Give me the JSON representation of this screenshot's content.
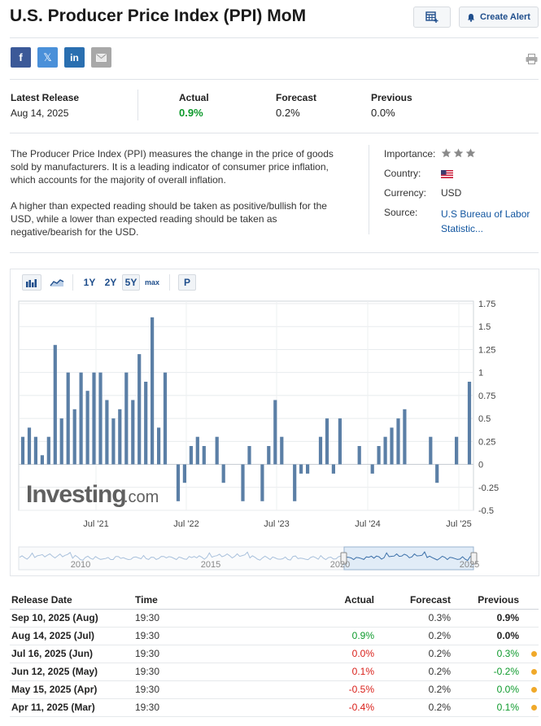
{
  "header": {
    "title": "U.S. Producer Price Index (PPI) MoM",
    "create_alert_label": "Create Alert"
  },
  "share": {
    "facebook": "f",
    "twitter": "𝕏",
    "linkedin": "in"
  },
  "release": {
    "latest_label": "Latest Release",
    "latest_date": "Aug 14, 2025",
    "actual_label": "Actual",
    "actual_value": "0.9%",
    "forecast_label": "Forecast",
    "forecast_value": "0.2%",
    "previous_label": "Previous",
    "previous_value": "0.0%"
  },
  "description": {
    "p1": "The Producer Price Index (PPI) measures the change in the price of goods sold by manufacturers. It is a leading indicator of consumer price inflation, which accounts for the majority of overall inflation.",
    "p2": "A higher than expected reading should be taken as positive/bullish for the USD, while a lower than expected reading should be taken as negative/bearish for the USD."
  },
  "meta": {
    "importance_label": "Importance:",
    "importance_stars": 3,
    "country_label": "Country:",
    "currency_label": "Currency:",
    "currency_value": "USD",
    "source_label": "Source:",
    "source_value_line1": "U.S Bureau of Labor",
    "source_value_line2": "Statistic..."
  },
  "chart_toolbar": {
    "range_1y": "1Y",
    "range_2y": "2Y",
    "range_5y": "5Y",
    "range_max": "max",
    "p_button": "P",
    "selected": "5Y"
  },
  "watermark": {
    "brand": "Investing",
    "suffix": ".com"
  },
  "chart_data": {
    "type": "bar",
    "x_ticks": [
      "Jul '21",
      "Jul '22",
      "Jul '23",
      "Jul '24",
      "Jul '25"
    ],
    "y_ticks": [
      "1.75",
      "1.5",
      "1.25",
      "1",
      "0.75",
      "0.5",
      "0.25",
      "0",
      "-0.25",
      "-0.5"
    ],
    "ylim": [
      -0.5,
      1.75
    ],
    "grid": true,
    "color": "#5b7fa6",
    "values": [
      0.3,
      0.4,
      0.3,
      0.1,
      0.3,
      1.3,
      0.5,
      1.0,
      0.6,
      1.0,
      0.8,
      1.0,
      1.0,
      0.7,
      0.5,
      0.6,
      1.0,
      0.7,
      1.2,
      0.9,
      1.6,
      0.4,
      1.0,
      0.0,
      -0.4,
      -0.2,
      0.2,
      0.3,
      0.2,
      0.0,
      0.3,
      -0.2,
      0.0,
      0.0,
      -0.4,
      0.2,
      0.0,
      -0.4,
      0.2,
      0.7,
      0.3,
      0.0,
      -0.4,
      -0.1,
      -0.1,
      0.0,
      0.3,
      0.5,
      -0.1,
      0.5,
      0.0,
      0.0,
      0.2,
      0.0,
      -0.1,
      0.2,
      0.3,
      0.4,
      0.5,
      0.6,
      0.0,
      0.0,
      0.0,
      0.3,
      -0.2,
      0.0,
      0.0,
      0.3,
      0.0,
      0.9
    ]
  },
  "navigator": {
    "labels": [
      "2010",
      "2015",
      "2020",
      "2025"
    ]
  },
  "table": {
    "headers": [
      "Release Date",
      "Time",
      "Actual",
      "Forecast",
      "Previous"
    ],
    "rows": [
      {
        "date": "Sep 10, 2025 (Aug)",
        "time": "19:30",
        "actual": "",
        "actual_color": "",
        "forecast": "0.3%",
        "previous": "0.9%",
        "previous_color": "bold",
        "dot": false
      },
      {
        "date": "Aug 14, 2025 (Jul)",
        "time": "19:30",
        "actual": "0.9%",
        "actual_color": "green",
        "forecast": "0.2%",
        "previous": "0.0%",
        "previous_color": "bold",
        "dot": false
      },
      {
        "date": "Jul 16, 2025 (Jun)",
        "time": "19:30",
        "actual": "0.0%",
        "actual_color": "red",
        "forecast": "0.2%",
        "previous": "0.3%",
        "previous_color": "green",
        "dot": true
      },
      {
        "date": "Jun 12, 2025 (May)",
        "time": "19:30",
        "actual": "0.1%",
        "actual_color": "red",
        "forecast": "0.2%",
        "previous": "-0.2%",
        "previous_color": "green",
        "dot": true
      },
      {
        "date": "May 15, 2025 (Apr)",
        "time": "19:30",
        "actual": "-0.5%",
        "actual_color": "red",
        "forecast": "0.2%",
        "previous": "0.0%",
        "previous_color": "green",
        "dot": true
      },
      {
        "date": "Apr 11, 2025 (Mar)",
        "time": "19:30",
        "actual": "-0.4%",
        "actual_color": "red",
        "forecast": "0.2%",
        "previous": "0.1%",
        "previous_color": "green",
        "dot": true
      }
    ]
  }
}
